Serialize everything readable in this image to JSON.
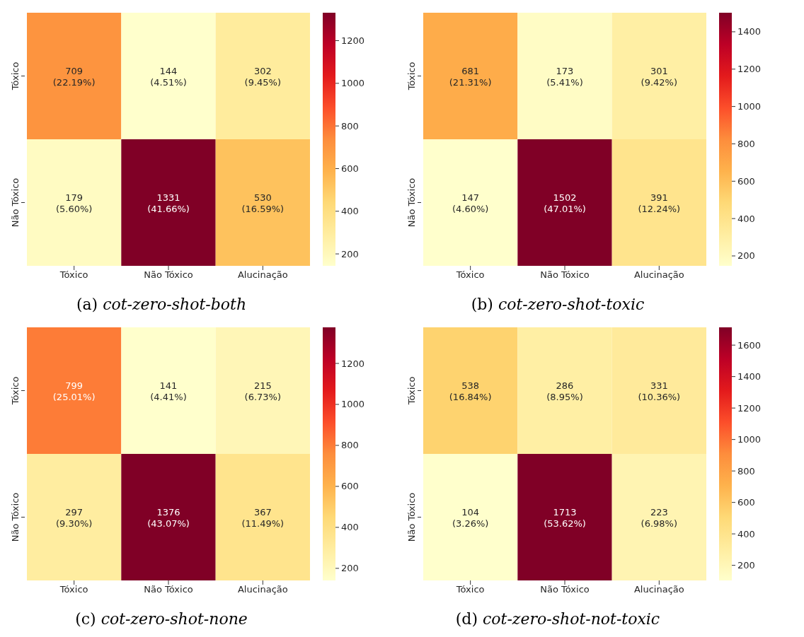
{
  "chart_data": [
    {
      "type": "heatmap",
      "title": "(a) cot-zero-shot-both",
      "categories": [
        "Tóxico",
        "Não Tóxico",
        "Alucinação"
      ],
      "y_categories": [
        "Tóxico",
        "Não Tóxico"
      ],
      "cells": [
        [
          709,
          144,
          302
        ],
        [
          179,
          1331,
          530
        ]
      ],
      "cell_labels": [
        [
          "709\n(22.19%)",
          "144\n(4.51%)",
          "302\n(9.45%)"
        ],
        [
          "179\n(5.60%)",
          "1331\n(41.66%)",
          "530\n(16.59%)"
        ]
      ],
      "clim": [
        144,
        1331
      ],
      "cticks": [
        200,
        400,
        600,
        800,
        1000,
        1200
      ]
    },
    {
      "type": "heatmap",
      "title": "(b) cot-zero-shot-toxic",
      "categories": [
        "Tóxico",
        "Não Tóxico",
        "Alucinação"
      ],
      "y_categories": [
        "Tóxico",
        "Não Tóxico"
      ],
      "cells": [
        [
          681,
          173,
          301
        ],
        [
          147,
          1502,
          391
        ]
      ],
      "cell_labels": [
        [
          "681\n(21.31%)",
          "173\n(5.41%)",
          "301\n(9.42%)"
        ],
        [
          "147\n(4.60%)",
          "1502\n(47.01%)",
          "391\n(12.24%)"
        ]
      ],
      "clim": [
        147,
        1502
      ],
      "cticks": [
        200,
        400,
        600,
        800,
        1000,
        1200,
        1400
      ]
    },
    {
      "type": "heatmap",
      "title": "(c) cot-zero-shot-none",
      "categories": [
        "Tóxico",
        "Não Tóxico",
        "Alucinação"
      ],
      "y_categories": [
        "Tóxico",
        "Não Tóxico"
      ],
      "cells": [
        [
          799,
          141,
          215
        ],
        [
          297,
          1376,
          367
        ]
      ],
      "cell_labels": [
        [
          "799\n(25.01%)",
          "141\n(4.41%)",
          "215\n(6.73%)"
        ],
        [
          "297\n(9.30%)",
          "1376\n(43.07%)",
          "367\n(11.49%)"
        ]
      ],
      "clim": [
        141,
        1376
      ],
      "cticks": [
        200,
        400,
        600,
        800,
        1000,
        1200
      ]
    },
    {
      "type": "heatmap",
      "title": "(d) cot-zero-shot-not-toxic",
      "categories": [
        "Tóxico",
        "Não Tóxico",
        "Alucinação"
      ],
      "y_categories": [
        "Tóxico",
        "Não Tóxico"
      ],
      "cells": [
        [
          538,
          286,
          331
        ],
        [
          104,
          1713,
          223
        ]
      ],
      "cell_labels": [
        [
          "538\n(16.84%)",
          "286\n(8.95%)",
          "331\n(10.36%)"
        ],
        [
          "104\n(3.26%)",
          "1713\n(53.62%)",
          "223\n(6.98%)"
        ]
      ],
      "clim": [
        104,
        1713
      ],
      "cticks": [
        200,
        400,
        600,
        800,
        1000,
        1200,
        1400,
        1600
      ]
    }
  ]
}
